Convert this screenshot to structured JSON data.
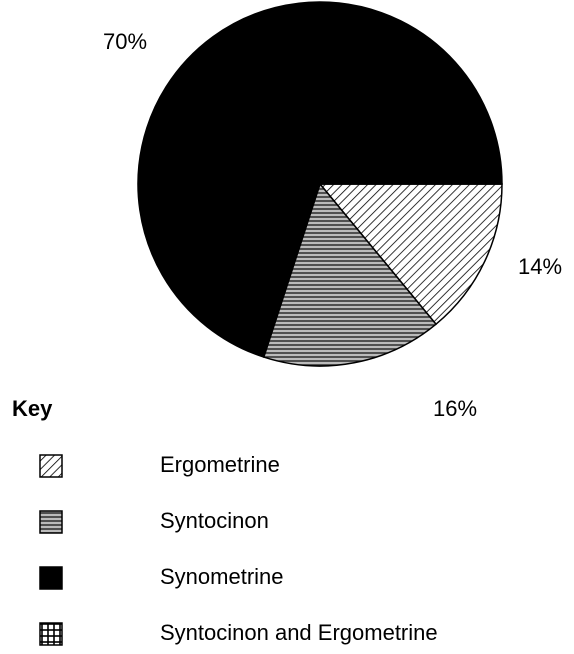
{
  "chart_data": {
    "type": "pie",
    "legend_title": "Key",
    "categories": [
      "Ergometrine",
      "Syntocinon",
      "Synometrine",
      "Syntocinon and Ergometrine"
    ],
    "values": [
      14,
      16,
      70,
      0
    ],
    "value_labels": [
      "14%",
      "16%",
      "70%",
      null
    ],
    "patterns": [
      "diagonal",
      "horizontal",
      "solid",
      "grid"
    ]
  }
}
